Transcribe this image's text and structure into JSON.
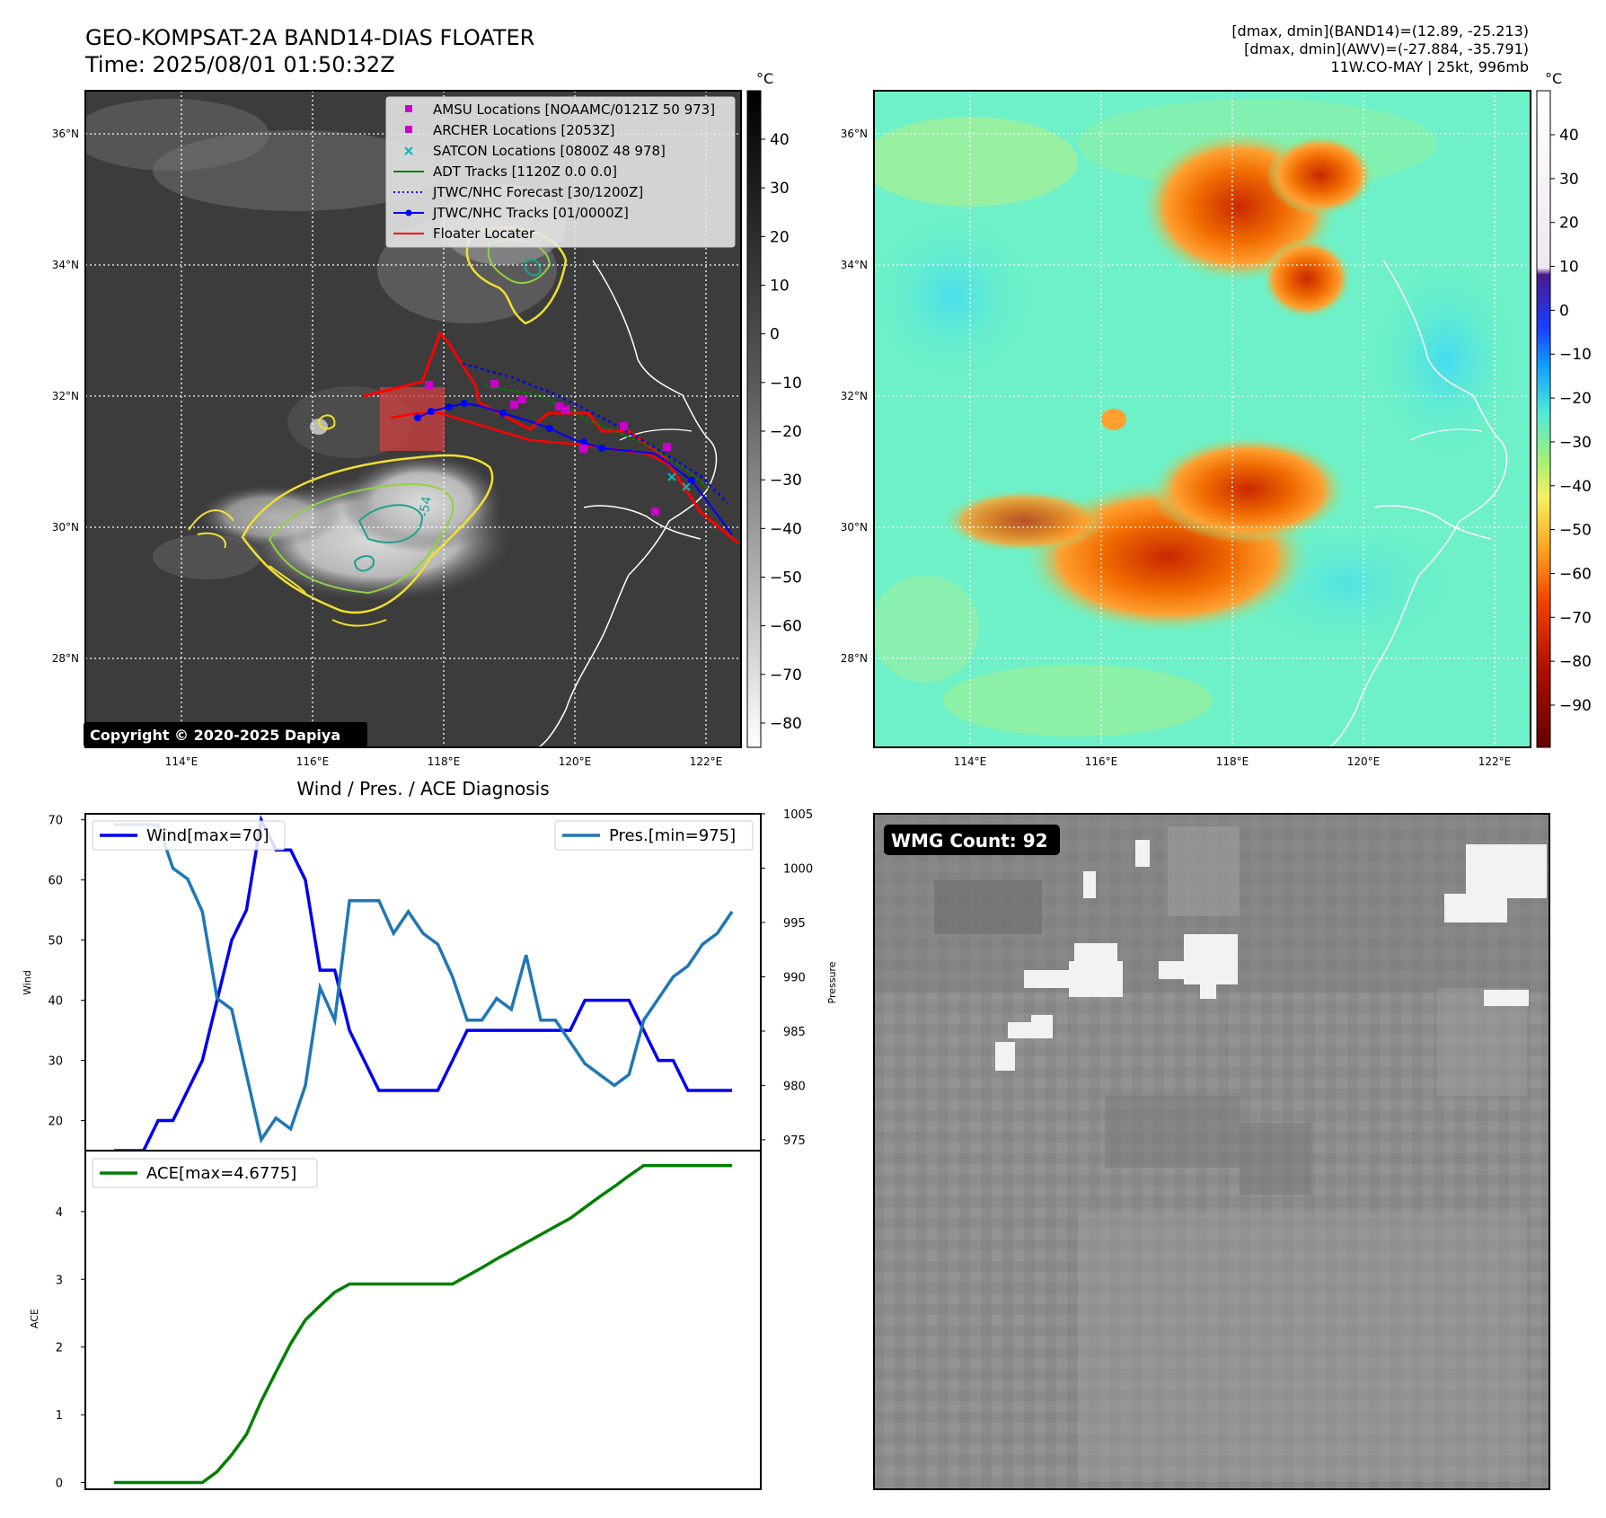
{
  "header": {
    "title_line1": "GEO-KOMPSAT-2A BAND14-DIAS FLOATER",
    "title_line2": "Time: 2025/08/01 01:50:32Z",
    "info_line1": "[dmax, dmin](BAND14)=(12.89, -25.213)",
    "info_line2": "[dmax, dmin](AWV)=(-27.884, -35.791)",
    "info_line3": "11W.CO-MAY | 25kt, 996mb"
  },
  "map": {
    "lat_labels": [
      "36°N",
      "34°N",
      "32°N",
      "30°N",
      "28°N"
    ],
    "lon_labels": [
      "114°E",
      "116°E",
      "118°E",
      "120°E",
      "122°E"
    ],
    "copyright": "Copyright © 2020-2025 Dapiya",
    "legend": [
      {
        "label": "AMSU Locations [NOAAMC/0121Z 50 973]",
        "kind": "square",
        "color": "#cc00cc"
      },
      {
        "label": "ARCHER Locations [2053Z]",
        "kind": "square",
        "color": "#cc00cc"
      },
      {
        "label": "SATCON Locations [0800Z 48 978]",
        "kind": "cross",
        "color": "#00bbbb"
      },
      {
        "label": "ADT Tracks [1120Z 0.0 0.0]",
        "kind": "line",
        "color": "#008000"
      },
      {
        "label": "JTWC/NHC Forecast [30/1200Z]",
        "kind": "dotted",
        "color": "#0000ff"
      },
      {
        "label": "JTWC/NHC Tracks [01/0000Z]",
        "kind": "dotline",
        "color": "#0000ff"
      },
      {
        "label": "Floater Locater",
        "kind": "line",
        "color": "#ff0000"
      }
    ],
    "contour_label": "-54"
  },
  "colorbar_left": {
    "unit": "°C",
    "ticks": [
      "40",
      "30",
      "20",
      "10",
      "0",
      "−10",
      "−20",
      "−30",
      "−40",
      "−50",
      "−60",
      "−70",
      "−80"
    ]
  },
  "colorbar_right": {
    "unit": "°C",
    "ticks": [
      "40",
      "30",
      "20",
      "10",
      "0",
      "−10",
      "−20",
      "−30",
      "−40",
      "−50",
      "−60",
      "−70",
      "−80",
      "−90"
    ]
  },
  "chart_data": [
    {
      "type": "line",
      "title": "Wind / Pres. / ACE Diagnosis",
      "ylabel": "Wind",
      "ylim": [
        15,
        71
      ],
      "yticks": [
        "70",
        "60",
        "50",
        "40",
        "30",
        "20"
      ],
      "series": [
        {
          "name": "Wind[max=70]",
          "color": "#0000ee",
          "values": [
            15,
            15,
            15,
            20,
            20,
            25,
            30,
            40,
            50,
            55,
            70,
            65,
            65,
            60,
            45,
            45,
            35,
            30,
            25,
            25,
            25,
            25,
            25,
            30,
            35,
            35,
            35,
            35,
            35,
            35,
            35,
            35,
            40,
            40,
            40,
            40,
            35,
            30,
            30,
            25,
            25,
            25,
            25
          ]
        }
      ]
    },
    {
      "type": "line",
      "ylabel": "Pressure",
      "ylim": [
        974,
        1005
      ],
      "yticks": [
        "1005",
        "1000",
        "995",
        "990",
        "985",
        "980",
        "975"
      ],
      "series": [
        {
          "name": "Pres.[min=975]",
          "color": "#1f77b4",
          "values": [
            1004,
            1004,
            1004,
            1004,
            1000,
            999,
            996,
            988,
            987,
            981,
            975,
            977,
            976,
            980,
            989,
            986,
            997,
            997,
            997,
            994,
            996,
            994,
            993,
            990,
            986,
            986,
            988,
            987,
            992,
            986,
            986,
            984,
            982,
            981,
            980,
            981,
            986,
            988,
            990,
            991,
            993,
            994,
            996
          ]
        }
      ]
    },
    {
      "type": "line",
      "ylabel": "ACE",
      "ylim": [
        -0.1,
        4.9
      ],
      "yticks": [
        "4",
        "3",
        "2",
        "1",
        "0"
      ],
      "series": [
        {
          "name": "ACE[max=4.6775]",
          "color": "#008000",
          "values": [
            0,
            0,
            0,
            0,
            0,
            0,
            0,
            0.16,
            0.41,
            0.71,
            1.2,
            1.63,
            2.05,
            2.4,
            2.61,
            2.81,
            2.93,
            2.93,
            2.93,
            2.93,
            2.93,
            2.93,
            2.93,
            2.93,
            3.05,
            3.17,
            3.3,
            3.42,
            3.54,
            3.66,
            3.78,
            3.9,
            4.06,
            4.22,
            4.37,
            4.53,
            4.68,
            4.68,
            4.68,
            4.68,
            4.68,
            4.68,
            4.68
          ]
        }
      ]
    }
  ],
  "wmg": {
    "label": "WMG Count: 92"
  }
}
